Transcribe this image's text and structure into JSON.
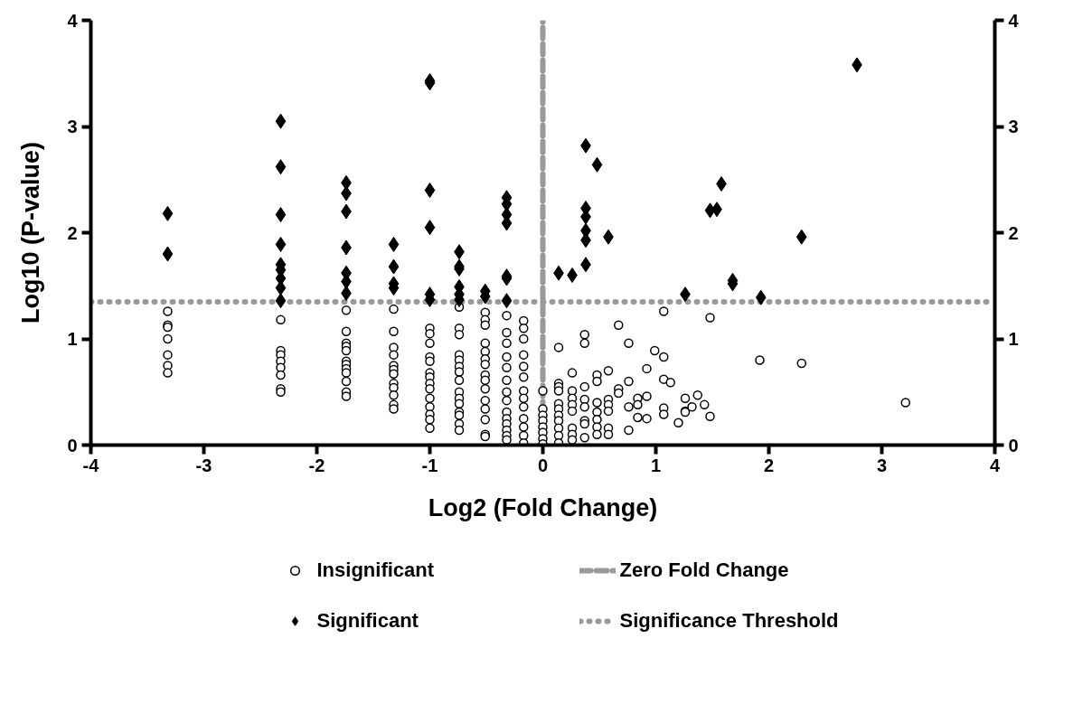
{
  "chart_data": {
    "type": "scatter",
    "xlabel": "Log2 (Fold Change)",
    "ylabel": "Log10 (P-value)",
    "xlim": [
      -4,
      4
    ],
    "xticks": [
      -4,
      -3,
      -2,
      -1,
      0,
      1,
      2,
      3,
      4
    ],
    "ylim": [
      0,
      4
    ],
    "yticks": [
      0,
      1,
      2,
      3,
      4
    ],
    "y2lim": [
      0,
      4
    ],
    "y2ticks": [
      0,
      1,
      2,
      3,
      4
    ],
    "grid": false,
    "legend": "bottom",
    "series": [
      {
        "name": "Insignificant",
        "color": "#000000",
        "marker": "circle",
        "x": [
          -3.32,
          -3.32,
          -3.32,
          -3.32,
          -3.32,
          -3.32,
          -3.32,
          -2.32,
          -2.32,
          -2.32,
          -2.32,
          -2.32,
          -2.32,
          -2.32,
          -2.32,
          -1.74,
          -1.74,
          -1.74,
          -1.74,
          -1.74,
          -1.74,
          -1.74,
          -1.74,
          -1.74,
          -1.74,
          -1.74,
          -1.74,
          -1.32,
          -1.32,
          -1.32,
          -1.32,
          -1.32,
          -1.32,
          -1.32,
          -1.32,
          -1.32,
          -1.32,
          -1.32,
          -1.32,
          -1.0,
          -1.0,
          -1.0,
          -1.0,
          -1.0,
          -1.0,
          -1.0,
          -1.0,
          -1.0,
          -1.0,
          -1.0,
          -1.0,
          -1.0,
          -1.0,
          -0.74,
          -0.74,
          -0.74,
          -0.74,
          -0.74,
          -0.74,
          -0.74,
          -0.74,
          -0.74,
          -0.74,
          -0.74,
          -0.74,
          -0.74,
          -0.74,
          -0.74,
          -0.51,
          -0.51,
          -0.51,
          -0.51,
          -0.51,
          -0.51,
          -0.51,
          -0.51,
          -0.51,
          -0.51,
          -0.51,
          -0.51,
          -0.51,
          -0.51,
          -0.51,
          -0.32,
          -0.32,
          -0.32,
          -0.32,
          -0.32,
          -0.32,
          -0.32,
          -0.32,
          -0.32,
          -0.32,
          -0.32,
          -0.32,
          -0.32,
          -0.32,
          -0.17,
          -0.17,
          -0.17,
          -0.17,
          -0.17,
          -0.17,
          -0.17,
          -0.17,
          -0.17,
          -0.17,
          -0.17,
          -0.17,
          -0.17,
          0,
          0,
          0,
          0,
          0,
          0,
          0,
          0,
          0.14,
          0.14,
          0.14,
          0.14,
          0.14,
          0.14,
          0.14,
          0.14,
          0.14,
          0.14,
          0.14,
          0.26,
          0.26,
          0.26,
          0.26,
          0.26,
          0.26,
          0.26,
          0.26,
          0.37,
          0.37,
          0.37,
          0.37,
          0.37,
          0.37,
          0.37,
          0.37,
          0.48,
          0.48,
          0.48,
          0.48,
          0.48,
          0.48,
          0.48,
          0.58,
          0.58,
          0.58,
          0.58,
          0.58,
          0.58,
          0.67,
          0.67,
          0.67,
          0.76,
          0.76,
          0.76,
          0.76,
          0.84,
          0.84,
          0.84,
          0.92,
          0.92,
          0.92,
          0.99,
          1.07,
          1.07,
          1.07,
          1.07,
          1.07,
          1.13,
          1.2,
          1.26,
          1.26,
          1.26,
          1.32,
          1.37,
          1.43,
          1.48,
          1.48,
          1.92,
          2.29,
          3.21
        ],
        "values": [
          1.26,
          1.13,
          1.11,
          1.0,
          0.85,
          0.75,
          0.68,
          1.18,
          0.89,
          0.85,
          0.79,
          0.73,
          0.66,
          0.53,
          0.5,
          1.27,
          1.07,
          0.96,
          0.93,
          0.89,
          0.79,
          0.76,
          0.72,
          0.68,
          0.6,
          0.5,
          0.46,
          1.28,
          1.07,
          0.92,
          0.85,
          0.75,
          0.71,
          0.67,
          0.58,
          0.54,
          0.47,
          0.38,
          0.34,
          1.1,
          1.05,
          0.96,
          0.83,
          0.79,
          0.68,
          0.64,
          0.58,
          0.53,
          0.44,
          0.36,
          0.29,
          0.24,
          0.16,
          1.3,
          1.1,
          1.04,
          0.85,
          0.8,
          0.74,
          0.69,
          0.61,
          0.5,
          0.44,
          0.39,
          0.31,
          0.28,
          0.2,
          0.14,
          1.25,
          1.18,
          1.13,
          0.96,
          0.88,
          0.81,
          0.76,
          0.66,
          0.61,
          0.53,
          0.42,
          0.34,
          0.24,
          0.1,
          0.08,
          1.22,
          1.06,
          0.96,
          0.83,
          0.73,
          0.61,
          0.5,
          0.42,
          0.31,
          0.25,
          0.2,
          0.14,
          0.09,
          0.05,
          1.17,
          1.1,
          1.0,
          0.85,
          0.74,
          0.64,
          0.51,
          0.44,
          0.36,
          0.25,
          0.17,
          0.09,
          0.02,
          0.51,
          0.34,
          0.28,
          0.23,
          0.17,
          0.12,
          0.06,
          0.01,
          0.92,
          0.58,
          0.55,
          0.51,
          0.39,
          0.34,
          0.28,
          0.23,
          0.16,
          0.09,
          0.02,
          0.68,
          0.51,
          0.44,
          0.38,
          0.32,
          0.16,
          0.1,
          0.05,
          1.04,
          0.96,
          0.55,
          0.43,
          0.36,
          0.23,
          0.2,
          0.07,
          0.66,
          0.6,
          0.4,
          0.31,
          0.24,
          0.17,
          0.1,
          0.7,
          0.43,
          0.38,
          0.32,
          0.16,
          0.1,
          1.13,
          0.53,
          0.49,
          0.96,
          0.6,
          0.36,
          0.14,
          0.44,
          0.38,
          0.26,
          0.72,
          0.46,
          0.25,
          0.89,
          1.26,
          0.83,
          0.62,
          0.35,
          0.29,
          0.59,
          0.21,
          0.44,
          0.32,
          0.31,
          0.36,
          0.47,
          0.38,
          1.2,
          0.27,
          0.8,
          0.77,
          0.4
        ]
      },
      {
        "name": "Significant",
        "color": "#000000",
        "marker": "diamond",
        "x": [
          -3.32,
          -3.32,
          -2.32,
          -2.32,
          -2.32,
          -2.32,
          -2.32,
          -2.32,
          -2.32,
          -2.32,
          -2.32,
          -1.74,
          -1.74,
          -1.74,
          -1.74,
          -1.74,
          -1.74,
          -1.74,
          -1.32,
          -1.32,
          -1.32,
          -1.32,
          -1.0,
          -1.0,
          -1.0,
          -1.0,
          -1.0,
          -1.0,
          -0.74,
          -0.74,
          -0.74,
          -0.74,
          -0.74,
          -0.74,
          -0.51,
          -0.51,
          -0.32,
          -0.32,
          -0.32,
          -0.32,
          -0.32,
          -0.32,
          -0.32,
          0.14,
          0.26,
          0.38,
          0.38,
          0.38,
          0.38,
          0.38,
          0.38,
          0.48,
          0.58,
          1.26,
          1.48,
          1.54,
          1.58,
          1.68,
          1.68,
          1.93,
          2.29,
          2.78
        ],
        "values": [
          2.18,
          1.8,
          3.05,
          2.62,
          2.17,
          1.89,
          1.7,
          1.65,
          1.57,
          1.48,
          1.36,
          2.47,
          2.37,
          2.2,
          1.86,
          1.62,
          1.54,
          1.43,
          1.89,
          1.68,
          1.52,
          1.48,
          3.43,
          3.41,
          2.4,
          2.05,
          1.42,
          1.37,
          1.82,
          1.68,
          1.66,
          1.49,
          1.42,
          1.37,
          1.45,
          1.4,
          2.33,
          2.27,
          2.17,
          2.09,
          1.59,
          1.57,
          1.36,
          1.62,
          1.6,
          2.82,
          2.23,
          2.15,
          2.02,
          1.93,
          1.7,
          2.64,
          1.96,
          1.42,
          2.21,
          2.22,
          2.46,
          1.55,
          1.52,
          1.39,
          1.96,
          3.58
        ]
      }
    ],
    "ref_lines": [
      {
        "axis": "x",
        "value": 0,
        "label": "Zero Fold Change",
        "color": "#999999",
        "line_style": "dashed"
      },
      {
        "axis": "y",
        "value": 1.35,
        "label": "Significance Threshold",
        "color": "#999999",
        "line_style": "dotted"
      }
    ]
  }
}
